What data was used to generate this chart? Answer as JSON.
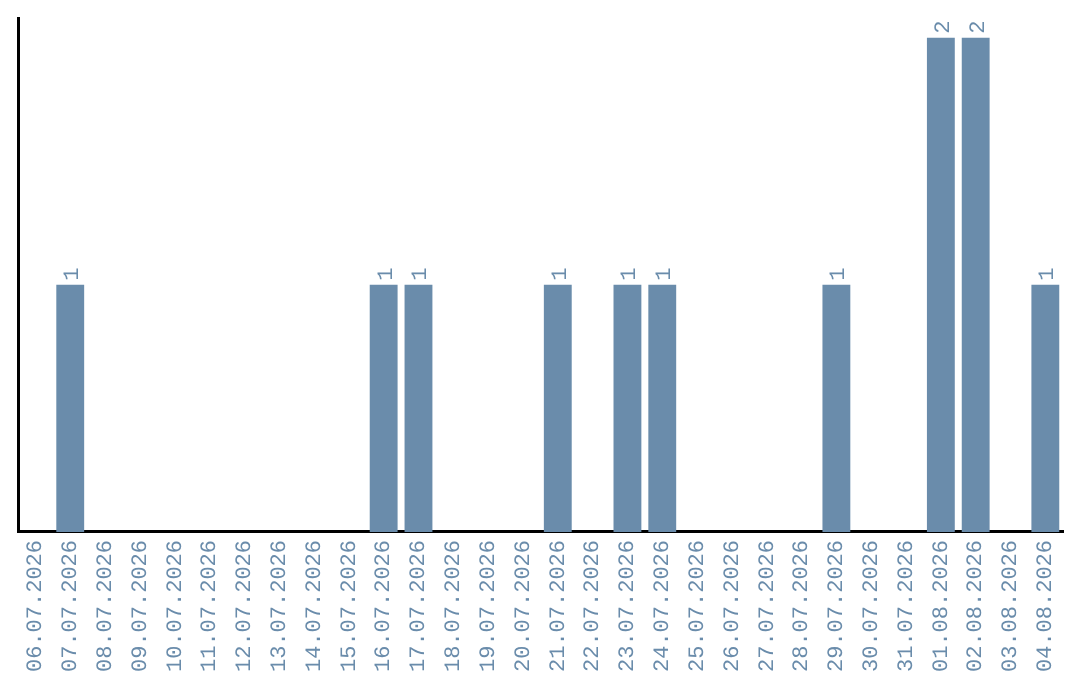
{
  "chart_data": {
    "type": "bar",
    "categories": [
      "06.07.2026",
      "07.07.2026",
      "08.07.2026",
      "09.07.2026",
      "10.07.2026",
      "11.07.2026",
      "12.07.2026",
      "13.07.2026",
      "14.07.2026",
      "15.07.2026",
      "16.07.2026",
      "17.07.2026",
      "18.07.2026",
      "19.07.2026",
      "20.07.2026",
      "21.07.2026",
      "22.07.2026",
      "23.07.2026",
      "24.07.2026",
      "25.07.2026",
      "26.07.2026",
      "27.07.2026",
      "28.07.2026",
      "29.07.2026",
      "30.07.2026",
      "31.07.2026",
      "01.08.2026",
      "02.08.2026",
      "03.08.2026",
      "04.08.2026"
    ],
    "values": [
      0,
      1,
      0,
      0,
      0,
      0,
      0,
      0,
      0,
      0,
      1,
      1,
      0,
      0,
      0,
      1,
      0,
      1,
      1,
      0,
      0,
      0,
      0,
      1,
      0,
      0,
      2,
      2,
      0,
      1
    ],
    "value_labels": [
      null,
      "1",
      null,
      null,
      null,
      null,
      null,
      null,
      null,
      null,
      "1",
      "1",
      null,
      null,
      null,
      "1",
      null,
      "1",
      "1",
      null,
      null,
      null,
      null,
      "1",
      null,
      null,
      "2",
      "2",
      null,
      "1"
    ],
    "color": "#6a8cab",
    "ylim": [
      0,
      2.08
    ],
    "tick_labels": "x",
    "grid": false,
    "legend": false
  }
}
